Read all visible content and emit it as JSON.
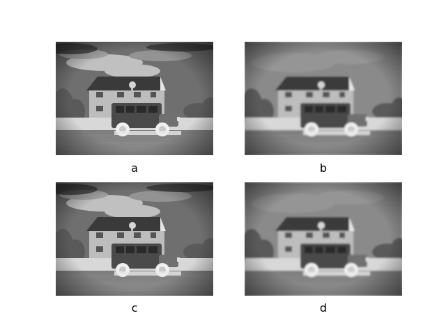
{
  "panels": [
    {
      "id": "a",
      "caption": "a",
      "variant": "sharp"
    },
    {
      "id": "b",
      "caption": "b",
      "variant": "soft"
    },
    {
      "id": "c",
      "caption": "c",
      "variant": "sharp"
    },
    {
      "id": "d",
      "caption": "d",
      "variant": "soft"
    }
  ],
  "colors": {
    "sky_sharp": "#6f6f6f",
    "sky_soft": "#8a8a8a",
    "house_wall": "#bdbdbd",
    "roof": "#3a3a3a",
    "wall_strip": "#d8d8d8",
    "ground": "#8f8f8f",
    "vehicle": "#4a4a4a",
    "wheels": "#f0f0f0"
  }
}
